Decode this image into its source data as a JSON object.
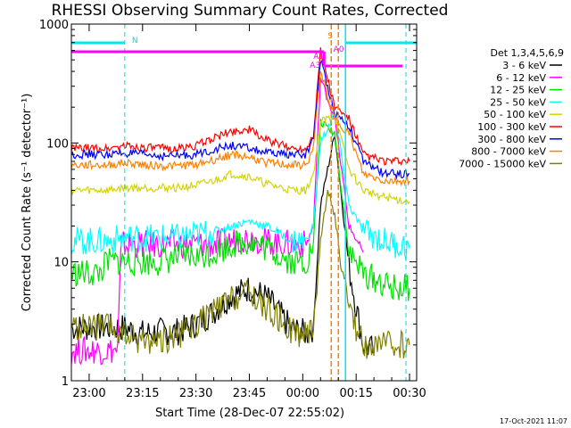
{
  "chart_data": {
    "type": "line",
    "title": "RHESSI Observing Summary Count Rates, Corrected",
    "xlabel": "Start Time (28-Dec-07 22:55:02)",
    "ylabel": "Corrected Count Rate (s⁻¹ detector⁻¹)",
    "yscale": "log",
    "ylim": [
      1,
      1000
    ],
    "ytick_labels": [
      "1",
      "10",
      "100",
      "1000"
    ],
    "xlim_minutes": [
      0,
      97
    ],
    "xtick_labels": [
      "23:00",
      "23:15",
      "23:30",
      "23:45",
      "00:00",
      "00:15",
      "00:30"
    ],
    "legend_title": "Det 1,3,4,5,6,9",
    "legend_position": "right",
    "grid": false,
    "series": [
      {
        "name": "3 - 6 keV",
        "color": "#000000",
        "x": [
          0,
          15,
          20,
          25,
          30,
          35,
          40,
          45,
          50,
          55,
          62,
          66,
          68,
          70,
          74,
          78,
          82,
          85
        ],
        "values": [
          2.8,
          2.8,
          2.5,
          2.6,
          2.6,
          3.0,
          3.8,
          5.2,
          6.0,
          5.0,
          2.7,
          2.5,
          2.8,
          30,
          120,
          9,
          2.0,
          1.8
        ]
      },
      {
        "name": "6 - 12 keV",
        "color": "#ff00ff",
        "x": [
          0,
          13,
          14,
          20,
          25,
          30,
          35,
          40,
          45,
          50,
          55,
          62,
          66,
          68,
          70,
          74,
          78,
          82
        ],
        "values": [
          1.8,
          1.8,
          14,
          14,
          14,
          14,
          14,
          14,
          15,
          16,
          15,
          14,
          14,
          20,
          350,
          160,
          20,
          12
        ]
      },
      {
        "name": "12 - 25 keV",
        "color": "#00e000",
        "x": [
          0,
          8,
          10,
          15,
          20,
          25,
          30,
          35,
          40,
          45,
          50,
          55,
          62,
          66,
          68,
          70,
          74,
          78,
          82,
          90,
          95
        ],
        "values": [
          8,
          8,
          10,
          10,
          10,
          10,
          11,
          11,
          12,
          14,
          15,
          13,
          10,
          10,
          14,
          150,
          120,
          12,
          8,
          6,
          6
        ]
      },
      {
        "name": "25 - 50 keV",
        "color": "#00ffff",
        "x": [
          0,
          10,
          15,
          20,
          25,
          30,
          35,
          40,
          45,
          50,
          55,
          62,
          66,
          68,
          70,
          74,
          78,
          82,
          88,
          95
        ],
        "values": [
          15,
          15,
          16,
          16,
          16,
          16,
          17,
          18,
          20,
          22,
          20,
          15,
          15,
          20,
          100,
          180,
          30,
          18,
          15,
          13
        ]
      },
      {
        "name": "50 - 100 keV",
        "color": "#d4d400",
        "x": [
          0,
          10,
          15,
          20,
          25,
          30,
          35,
          40,
          45,
          50,
          55,
          62,
          66,
          68,
          70,
          74,
          78,
          82,
          88,
          95
        ],
        "values": [
          40,
          40,
          42,
          42,
          42,
          42,
          44,
          48,
          55,
          52,
          45,
          40,
          40,
          55,
          150,
          170,
          60,
          40,
          35,
          32
        ]
      },
      {
        "name": "100 - 300 keV",
        "color": "#ff0000",
        "x": [
          0,
          10,
          15,
          20,
          25,
          30,
          35,
          40,
          45,
          50,
          55,
          62,
          66,
          68,
          70,
          74,
          78,
          82,
          88,
          95
        ],
        "values": [
          90,
          90,
          95,
          92,
          90,
          90,
          95,
          110,
          125,
          130,
          105,
          90,
          90,
          120,
          600,
          200,
          160,
          80,
          70,
          70
        ]
      },
      {
        "name": "300 - 800 keV",
        "color": "#0000ff",
        "x": [
          0,
          10,
          15,
          20,
          25,
          30,
          35,
          40,
          45,
          50,
          55,
          62,
          66,
          68,
          70,
          74,
          78,
          82,
          88,
          95
        ],
        "values": [
          80,
          80,
          82,
          80,
          78,
          78,
          80,
          88,
          95,
          90,
          82,
          80,
          80,
          110,
          500,
          180,
          140,
          70,
          55,
          55
        ]
      },
      {
        "name": "800 - 7000 keV",
        "color": "#ff8000",
        "x": [
          0,
          10,
          15,
          20,
          25,
          30,
          35,
          40,
          45,
          50,
          55,
          62,
          66,
          68,
          70,
          74,
          78,
          82,
          88,
          95
        ],
        "values": [
          65,
          65,
          68,
          66,
          64,
          64,
          66,
          72,
          80,
          76,
          68,
          65,
          65,
          90,
          400,
          160,
          120,
          55,
          48,
          48
        ]
      },
      {
        "name": "7000 - 15000 keV",
        "color": "#808000",
        "x": [
          0,
          10,
          15,
          20,
          25,
          30,
          35,
          40,
          45,
          50,
          55,
          62,
          66,
          68,
          70,
          72,
          74,
          76,
          78,
          82,
          88,
          95
        ],
        "values": [
          2.8,
          2.8,
          2.4,
          2.2,
          2.2,
          2.4,
          3.0,
          3.8,
          4.8,
          5.5,
          4.0,
          2.6,
          2.4,
          3.0,
          15,
          40,
          25,
          8,
          4,
          2.0,
          2.0,
          2.0
        ]
      }
    ],
    "annotations": {
      "top_labels": [
        "N",
        "S",
        "A1",
        "A0",
        "A3"
      ],
      "night_markers_minutes": [
        0,
        15,
        77,
        94
      ],
      "saa_markers_minutes": [
        73,
        75
      ]
    }
  },
  "footer": {
    "date": "17-Oct-2021 11:07"
  }
}
